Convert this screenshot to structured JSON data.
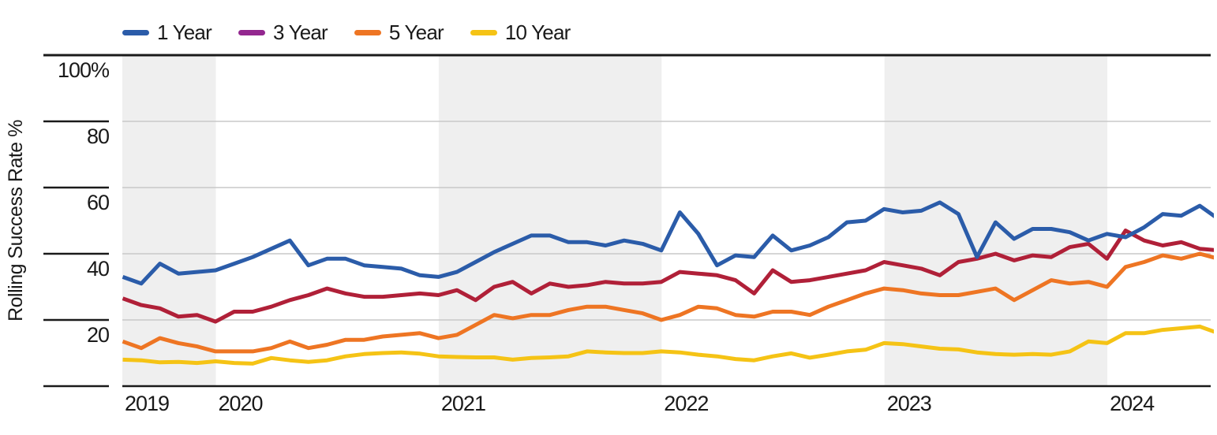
{
  "chart_data": {
    "type": "line",
    "title": "",
    "ylabel": "Rolling Success Rate %",
    "xlabel": "",
    "x_start": "2019-08",
    "x_end": "2024-07",
    "x_frequency": "monthly",
    "x_tick_years": [
      2019,
      2020,
      2021,
      2022,
      2023,
      2024
    ],
    "shaded_years": [
      2019,
      2021,
      2023
    ],
    "ylim": [
      0,
      100
    ],
    "grid": "horizontal",
    "legend_position": "top-left",
    "y_ticks": [
      {
        "value": 100,
        "label": "100%"
      },
      {
        "value": 80,
        "label": "80"
      },
      {
        "value": 60,
        "label": "60"
      },
      {
        "value": 40,
        "label": "40"
      },
      {
        "value": 20,
        "label": "20"
      },
      {
        "value": 0,
        "label": ""
      }
    ],
    "colors": {
      "band": "#efefef",
      "grid_light": "#c8c8c8",
      "axis_dark": "#1a1a1a",
      "text": "#1a1a1a",
      "background": "#ffffff"
    },
    "series": [
      {
        "name": "1 Year",
        "legend_color": "#2b5ca9",
        "line_color": "#2b5ca9",
        "values": [
          33,
          31,
          37,
          34,
          34.5,
          35,
          37,
          39,
          41.5,
          44,
          36.5,
          38.5,
          38.5,
          36.5,
          36,
          35.5,
          33.5,
          33,
          34.5,
          37.5,
          40.5,
          43,
          45.5,
          45.5,
          43.5,
          43.5,
          42.5,
          44,
          43,
          41,
          52.5,
          46,
          36.5,
          39.5,
          39,
          45.5,
          41,
          42.5,
          45,
          49.5,
          50,
          53.5,
          52.5,
          53,
          55.5,
          52,
          39,
          49.5,
          44.5,
          47.5,
          47.5,
          46.5,
          44,
          46,
          45,
          48,
          52,
          51.5,
          54.5,
          50.5
        ]
      },
      {
        "name": "3 Year",
        "legend_color": "#93278f",
        "line_color": "#b02038",
        "values": [
          26.5,
          24.5,
          23.5,
          21,
          21.5,
          19.5,
          22.5,
          22.5,
          24,
          26,
          27.5,
          29.5,
          28,
          27,
          27,
          27.5,
          28,
          27.5,
          29,
          26,
          30,
          31.5,
          28,
          31,
          30,
          30.5,
          31.5,
          31,
          31,
          31.5,
          34.5,
          34,
          33.5,
          32,
          28,
          35,
          31.5,
          32,
          33,
          34,
          35,
          37.5,
          36.5,
          35.5,
          33.5,
          37.5,
          38.5,
          40,
          38,
          39.5,
          39,
          42,
          43,
          38.5,
          47,
          44,
          42.5,
          43.5,
          41.5,
          41
        ]
      },
      {
        "name": "5 Year",
        "legend_color": "#ee7523",
        "line_color": "#ee7523",
        "values": [
          13.5,
          11.5,
          14.5,
          13,
          12,
          10.5,
          10.5,
          10.5,
          11.5,
          13.5,
          11.5,
          12.5,
          14,
          14,
          15,
          15.5,
          16,
          14.5,
          15.5,
          18.5,
          21.5,
          20.5,
          21.5,
          21.5,
          23,
          24,
          24,
          23,
          22,
          20,
          21.5,
          24,
          23.5,
          21.5,
          21,
          22.5,
          22.5,
          21.5,
          24,
          26,
          28,
          29.5,
          29,
          28,
          27.5,
          27.5,
          28.5,
          29.5,
          26,
          29,
          32,
          31,
          31.5,
          30,
          36,
          37.5,
          39.5,
          38.5,
          40,
          38.5
        ]
      },
      {
        "name": "10 Year",
        "legend_color": "#f5c315",
        "line_color": "#f5c315",
        "values": [
          8,
          7.8,
          7.2,
          7.3,
          7,
          7.5,
          7,
          6.8,
          8.5,
          7.8,
          7.3,
          7.8,
          9,
          9.7,
          10,
          10.2,
          9.8,
          9,
          8.8,
          8.7,
          8.7,
          8,
          8.5,
          8.7,
          9,
          10.5,
          10.2,
          10,
          10,
          10.5,
          10.2,
          9.5,
          9,
          8.2,
          7.8,
          9,
          9.9,
          8.6,
          9.5,
          10.5,
          11,
          13,
          12.7,
          12,
          11.3,
          11.1,
          10.2,
          9.7,
          9.5,
          9.7,
          9.5,
          10.5,
          13.5,
          13,
          16,
          16,
          17,
          17.5,
          18,
          16
        ]
      }
    ]
  }
}
